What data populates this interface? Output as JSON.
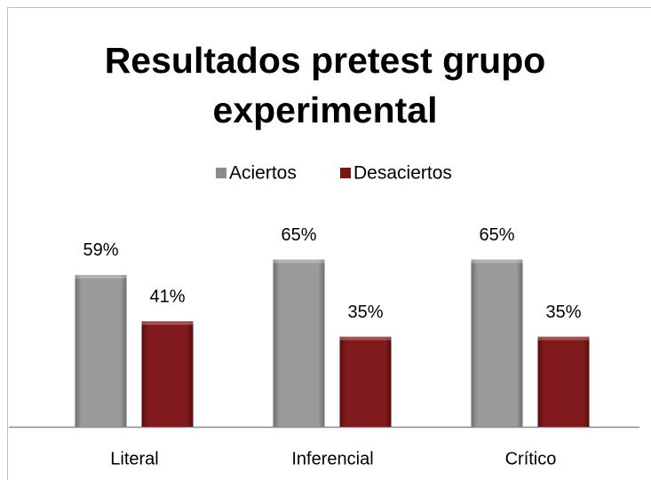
{
  "chart_data": {
    "type": "bar",
    "title": "Resultados pretest grupo experimental",
    "categories": [
      "Literal",
      "Inferencial",
      "Crítico"
    ],
    "series": [
      {
        "name": "Aciertos",
        "color": "#8c8c8c",
        "values": [
          59,
          65,
          65
        ],
        "value_labels": [
          "59%",
          "65%",
          "65%"
        ]
      },
      {
        "name": "Desaciertos",
        "color": "#7a1517",
        "values": [
          41,
          35,
          35
        ],
        "value_labels": [
          "41%",
          "35%",
          "35%"
        ]
      }
    ],
    "legend": "top"
  }
}
